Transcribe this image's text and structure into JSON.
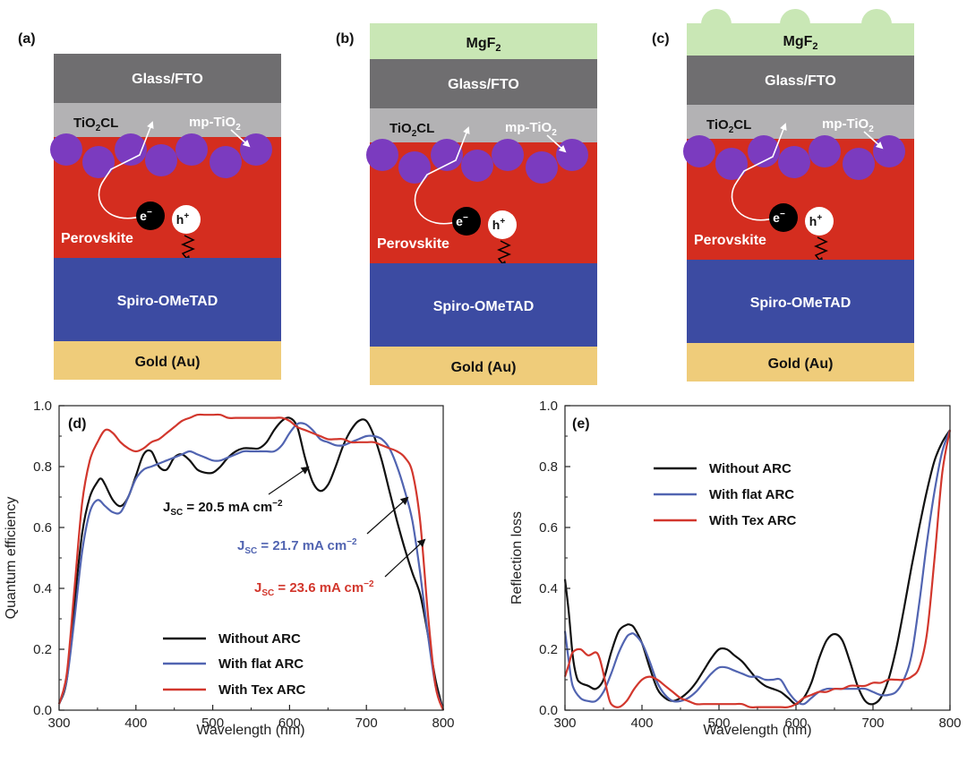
{
  "diagrams": [
    {
      "label": "(a)",
      "has_mgf2": false,
      "textured": false,
      "layers": {
        "glass": "Glass/FTO",
        "tio2": "TiO",
        "tio2_sub": "2",
        "tio2_suffix": "CL",
        "mp": "mp-TiO",
        "mp_sub": "2",
        "perovskite": "Perovskite",
        "spiro": "Spiro-OMeTAD",
        "gold": "Gold (Au)",
        "electron": "e",
        "electron_sup": "−",
        "hole": "h",
        "hole_sup": "+"
      }
    },
    {
      "label": "(b)",
      "has_mgf2": true,
      "textured": false,
      "mgf2": "MgF",
      "mgf2_sub": "2",
      "layers": {
        "glass": "Glass/FTO",
        "tio2": "TiO",
        "tio2_sub": "2",
        "tio2_suffix": "CL",
        "mp": "mp-TiO",
        "mp_sub": "2",
        "perovskite": "Perovskite",
        "spiro": "Spiro-OMeTAD",
        "gold": "Gold (Au)",
        "electron": "e",
        "electron_sup": "−",
        "hole": "h",
        "hole_sup": "+"
      }
    },
    {
      "label": "(c)",
      "has_mgf2": true,
      "textured": true,
      "mgf2": "MgF",
      "mgf2_sub": "2",
      "layers": {
        "glass": "Glass/FTO",
        "tio2": "TiO",
        "tio2_sub": "2",
        "tio2_suffix": "CL",
        "mp": "mp-TiO",
        "mp_sub": "2",
        "perovskite": "Perovskite",
        "spiro": "Spiro-OMeTAD",
        "gold": "Gold (Au)",
        "electron": "e",
        "electron_sup": "−",
        "hole": "h",
        "hole_sup": "+"
      }
    }
  ],
  "colors": {
    "glass": "#6f6e70",
    "tio2": "#b3b2b4",
    "perovskite": "#d42d1f",
    "particles": "#7b3bbf",
    "spiro": "#3c4ba2",
    "gold": "#efcc7a",
    "mgf2": "#c9e7b5",
    "without": "#111111",
    "flat": "#5164b1",
    "tex": "#d2372d"
  },
  "chart_data": [
    {
      "label": "(d)",
      "type": "line",
      "xlabel": "Wavelength (nm)",
      "ylabel": "Quantum efficiency",
      "xlim": [
        300,
        800
      ],
      "ylim": [
        0,
        1.0
      ],
      "xticks": [
        "300",
        "400",
        "500",
        "600",
        "700",
        "800"
      ],
      "yticks": [
        "0.0",
        "0.2",
        "0.4",
        "0.6",
        "0.8",
        "1.0"
      ],
      "legend_position": "bottom-left",
      "series": [
        {
          "name": "Without ARC",
          "color": "#111111",
          "x": [
            300,
            310,
            320,
            330,
            340,
            350,
            355,
            360,
            370,
            380,
            390,
            400,
            410,
            420,
            430,
            440,
            450,
            460,
            470,
            480,
            490,
            500,
            510,
            520,
            530,
            540,
            550,
            560,
            570,
            580,
            590,
            600,
            610,
            620,
            630,
            640,
            650,
            660,
            670,
            680,
            690,
            700,
            710,
            720,
            730,
            740,
            750,
            760,
            770,
            780,
            790,
            800
          ],
          "y": [
            0.02,
            0.1,
            0.35,
            0.58,
            0.7,
            0.75,
            0.76,
            0.74,
            0.69,
            0.67,
            0.7,
            0.77,
            0.84,
            0.85,
            0.8,
            0.79,
            0.83,
            0.84,
            0.82,
            0.79,
            0.78,
            0.78,
            0.8,
            0.83,
            0.85,
            0.86,
            0.86,
            0.86,
            0.88,
            0.92,
            0.95,
            0.96,
            0.93,
            0.83,
            0.75,
            0.72,
            0.74,
            0.8,
            0.87,
            0.92,
            0.95,
            0.95,
            0.9,
            0.82,
            0.72,
            0.62,
            0.53,
            0.45,
            0.38,
            0.25,
            0.1,
            0.0
          ]
        },
        {
          "name": "With flat ARC",
          "color": "#5164b1",
          "x": [
            300,
            310,
            320,
            330,
            340,
            350,
            360,
            370,
            380,
            390,
            400,
            410,
            420,
            430,
            440,
            450,
            460,
            470,
            480,
            490,
            500,
            510,
            520,
            530,
            540,
            550,
            560,
            570,
            580,
            590,
            600,
            610,
            620,
            630,
            640,
            650,
            660,
            670,
            680,
            690,
            700,
            710,
            720,
            730,
            740,
            750,
            760,
            770,
            780,
            790,
            800
          ],
          "y": [
            0.02,
            0.1,
            0.3,
            0.52,
            0.65,
            0.69,
            0.67,
            0.65,
            0.65,
            0.7,
            0.76,
            0.79,
            0.8,
            0.81,
            0.82,
            0.83,
            0.84,
            0.85,
            0.84,
            0.83,
            0.82,
            0.82,
            0.83,
            0.84,
            0.85,
            0.85,
            0.85,
            0.85,
            0.85,
            0.87,
            0.91,
            0.94,
            0.94,
            0.92,
            0.89,
            0.88,
            0.87,
            0.87,
            0.88,
            0.89,
            0.9,
            0.9,
            0.89,
            0.86,
            0.8,
            0.72,
            0.62,
            0.45,
            0.25,
            0.08,
            0.0
          ]
        },
        {
          "name": "With Tex ARC",
          "color": "#d2372d",
          "x": [
            300,
            310,
            320,
            330,
            340,
            350,
            360,
            370,
            380,
            390,
            400,
            410,
            420,
            430,
            440,
            450,
            460,
            470,
            480,
            490,
            500,
            510,
            520,
            530,
            540,
            550,
            560,
            570,
            580,
            590,
            600,
            610,
            620,
            630,
            640,
            650,
            660,
            670,
            680,
            690,
            700,
            710,
            720,
            730,
            740,
            750,
            760,
            770,
            780,
            790,
            800
          ],
          "y": [
            0.02,
            0.12,
            0.4,
            0.68,
            0.82,
            0.88,
            0.92,
            0.91,
            0.88,
            0.86,
            0.85,
            0.86,
            0.88,
            0.89,
            0.91,
            0.93,
            0.95,
            0.96,
            0.97,
            0.97,
            0.97,
            0.97,
            0.96,
            0.96,
            0.96,
            0.96,
            0.96,
            0.96,
            0.96,
            0.96,
            0.95,
            0.93,
            0.92,
            0.91,
            0.9,
            0.89,
            0.89,
            0.89,
            0.88,
            0.88,
            0.88,
            0.88,
            0.87,
            0.86,
            0.85,
            0.83,
            0.78,
            0.62,
            0.32,
            0.08,
            0.0
          ]
        }
      ],
      "annotations": [
        {
          "prefix": "J",
          "sub": "SC",
          "text": " = 20.5 mA cm",
          "sup": "−2",
          "color": "#111111"
        },
        {
          "prefix": "J",
          "sub": "SC",
          "text": " = 21.7 mA cm",
          "sup": "−2",
          "color": "#5164b1"
        },
        {
          "prefix": "J",
          "sub": "SC",
          "text": " = 23.6 mA cm",
          "sup": "−2",
          "color": "#d2372d"
        }
      ]
    },
    {
      "label": "(e)",
      "type": "line",
      "xlabel": "Wavelength (nm)",
      "ylabel": "Reflection loss",
      "xlim": [
        300,
        800
      ],
      "ylim": [
        0,
        1.0
      ],
      "xticks": [
        "300",
        "400",
        "500",
        "600",
        "700",
        "800"
      ],
      "yticks": [
        "0.0",
        "0.2",
        "0.4",
        "0.6",
        "0.8",
        "1.0"
      ],
      "legend_position": "top-left",
      "series": [
        {
          "name": "Without ARC",
          "color": "#111111",
          "x": [
            300,
            305,
            310,
            315,
            320,
            330,
            340,
            350,
            360,
            370,
            380,
            385,
            390,
            400,
            410,
            420,
            430,
            440,
            450,
            460,
            470,
            480,
            490,
            500,
            510,
            520,
            530,
            540,
            550,
            560,
            570,
            580,
            590,
            600,
            610,
            620,
            630,
            640,
            650,
            660,
            670,
            680,
            690,
            700,
            710,
            720,
            730,
            740,
            750,
            760,
            770,
            780,
            790,
            800
          ],
          "y": [
            0.43,
            0.32,
            0.18,
            0.11,
            0.09,
            0.08,
            0.07,
            0.1,
            0.19,
            0.26,
            0.28,
            0.28,
            0.27,
            0.22,
            0.14,
            0.07,
            0.04,
            0.03,
            0.04,
            0.06,
            0.09,
            0.13,
            0.17,
            0.2,
            0.2,
            0.18,
            0.16,
            0.13,
            0.1,
            0.08,
            0.07,
            0.06,
            0.04,
            0.02,
            0.04,
            0.09,
            0.17,
            0.23,
            0.25,
            0.23,
            0.16,
            0.08,
            0.03,
            0.02,
            0.04,
            0.1,
            0.2,
            0.33,
            0.47,
            0.6,
            0.72,
            0.82,
            0.88,
            0.92
          ]
        },
        {
          "name": "With flat ARC",
          "color": "#5164b1",
          "x": [
            300,
            305,
            310,
            320,
            330,
            340,
            350,
            360,
            370,
            380,
            385,
            390,
            400,
            410,
            420,
            430,
            440,
            450,
            460,
            470,
            480,
            490,
            500,
            510,
            520,
            530,
            540,
            550,
            560,
            570,
            580,
            590,
            600,
            610,
            620,
            630,
            640,
            650,
            660,
            670,
            680,
            690,
            700,
            710,
            720,
            730,
            740,
            750,
            760,
            770,
            780,
            790,
            800
          ],
          "y": [
            0.26,
            0.16,
            0.08,
            0.04,
            0.03,
            0.03,
            0.06,
            0.12,
            0.19,
            0.24,
            0.25,
            0.25,
            0.22,
            0.16,
            0.09,
            0.05,
            0.03,
            0.03,
            0.04,
            0.06,
            0.09,
            0.12,
            0.14,
            0.14,
            0.13,
            0.12,
            0.11,
            0.11,
            0.1,
            0.1,
            0.1,
            0.06,
            0.03,
            0.02,
            0.04,
            0.06,
            0.07,
            0.07,
            0.07,
            0.07,
            0.07,
            0.07,
            0.06,
            0.05,
            0.05,
            0.06,
            0.1,
            0.18,
            0.35,
            0.55,
            0.72,
            0.85,
            0.92
          ]
        },
        {
          "name": "With Tex ARC",
          "color": "#d2372d",
          "x": [
            300,
            305,
            310,
            320,
            330,
            340,
            345,
            350,
            355,
            360,
            370,
            380,
            390,
            400,
            410,
            420,
            430,
            440,
            450,
            460,
            470,
            480,
            490,
            500,
            510,
            520,
            530,
            540,
            550,
            560,
            570,
            580,
            590,
            600,
            610,
            620,
            630,
            640,
            650,
            660,
            670,
            680,
            690,
            700,
            710,
            720,
            730,
            740,
            750,
            760,
            770,
            780,
            790,
            800
          ],
          "y": [
            0.11,
            0.15,
            0.19,
            0.2,
            0.18,
            0.19,
            0.17,
            0.12,
            0.06,
            0.02,
            0.01,
            0.03,
            0.07,
            0.1,
            0.11,
            0.1,
            0.08,
            0.06,
            0.04,
            0.03,
            0.02,
            0.02,
            0.02,
            0.02,
            0.02,
            0.02,
            0.02,
            0.01,
            0.01,
            0.01,
            0.01,
            0.01,
            0.01,
            0.02,
            0.04,
            0.05,
            0.06,
            0.06,
            0.07,
            0.07,
            0.08,
            0.08,
            0.08,
            0.09,
            0.09,
            0.1,
            0.1,
            0.1,
            0.11,
            0.14,
            0.25,
            0.5,
            0.78,
            0.92
          ]
        }
      ]
    }
  ]
}
